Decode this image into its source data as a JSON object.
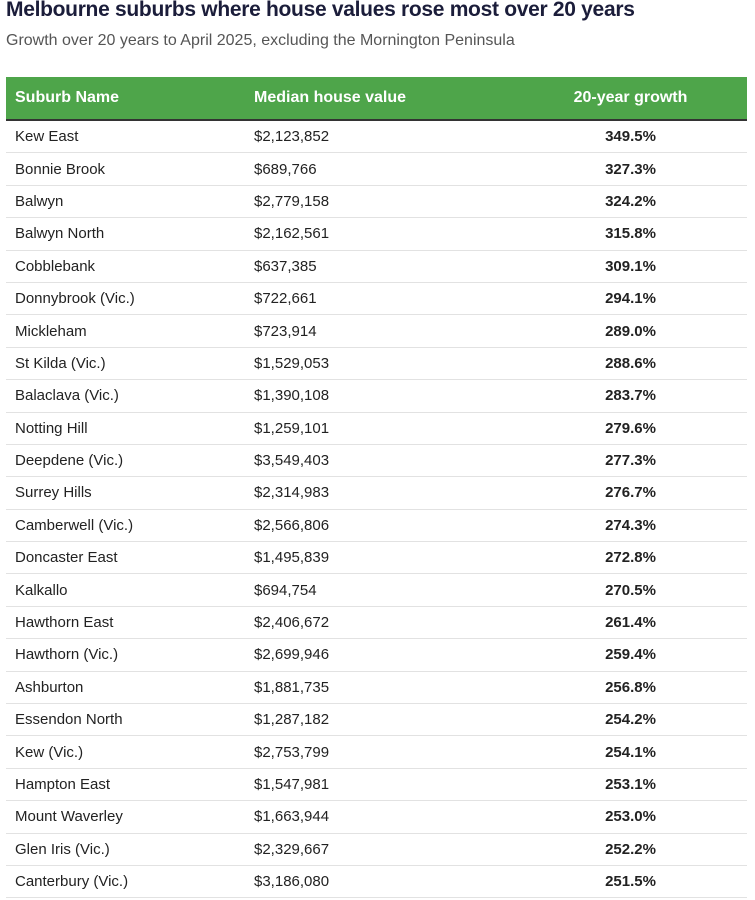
{
  "header": {
    "title": "Melbourne suburbs where house values rose most over 20 years",
    "subtitle": "Growth over 20 years to April 2025, excluding the Mornington Peninsula"
  },
  "table": {
    "columns": [
      "Suburb Name",
      "Median house value",
      "20-year growth"
    ],
    "rows": [
      [
        "Kew East",
        "$2,123,852",
        "349.5%"
      ],
      [
        "Bonnie Brook",
        "$689,766",
        "327.3%"
      ],
      [
        "Balwyn",
        "$2,779,158",
        "324.2%"
      ],
      [
        "Balwyn North",
        "$2,162,561",
        "315.8%"
      ],
      [
        "Cobblebank",
        "$637,385",
        "309.1%"
      ],
      [
        "Donnybrook (Vic.)",
        "$722,661",
        "294.1%"
      ],
      [
        "Mickleham",
        "$723,914",
        "289.0%"
      ],
      [
        "St Kilda (Vic.)",
        "$1,529,053",
        "288.6%"
      ],
      [
        "Balaclava (Vic.)",
        "$1,390,108",
        "283.7%"
      ],
      [
        "Notting Hill",
        "$1,259,101",
        "279.6%"
      ],
      [
        "Deepdene (Vic.)",
        "$3,549,403",
        "277.3%"
      ],
      [
        "Surrey Hills",
        "$2,314,983",
        "276.7%"
      ],
      [
        "Camberwell (Vic.)",
        "$2,566,806",
        "274.3%"
      ],
      [
        "Doncaster East",
        "$1,495,839",
        "272.8%"
      ],
      [
        "Kalkallo",
        "$694,754",
        "270.5%"
      ],
      [
        "Hawthorn East",
        "$2,406,672",
        "261.4%"
      ],
      [
        "Hawthorn (Vic.)",
        "$2,699,946",
        "259.4%"
      ],
      [
        "Ashburton",
        "$1,881,735",
        "256.8%"
      ],
      [
        "Essendon North",
        "$1,287,182",
        "254.2%"
      ],
      [
        "Kew (Vic.)",
        "$2,753,799",
        "254.1%"
      ],
      [
        "Hampton East",
        "$1,547,981",
        "253.1%"
      ],
      [
        "Mount Waverley",
        "$1,663,944",
        "253.0%"
      ],
      [
        "Glen Iris (Vic.)",
        "$2,329,667",
        "252.2%"
      ],
      [
        "Canterbury (Vic.)",
        "$3,186,080",
        "251.5%"
      ]
    ]
  }
}
